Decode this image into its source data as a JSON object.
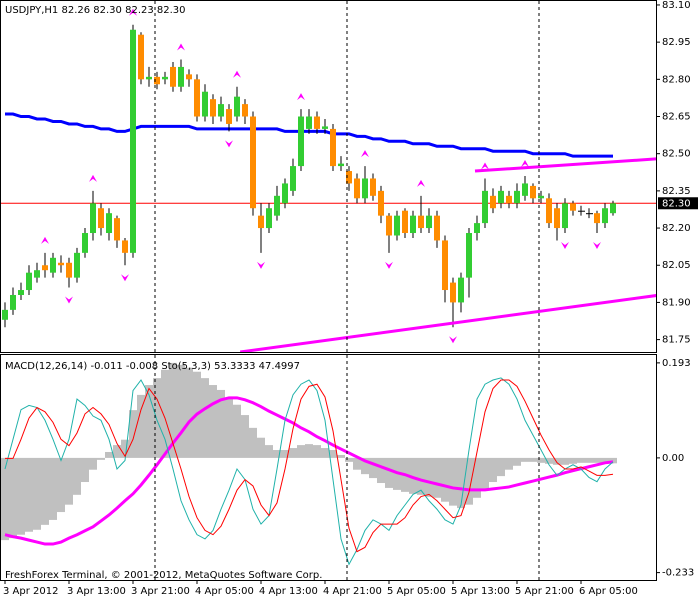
{
  "chart_data": [
    {
      "type": "candlestick",
      "title": "USDJPY,H1 82.26 82.30 82.23 82.30",
      "categories": [
        "3 Apr 2012",
        null,
        null,
        null,
        null,
        null,
        null,
        null,
        "3 Apr 13:00",
        null,
        null,
        null,
        null,
        null,
        null,
        null,
        "3 Apr 21:00",
        null,
        null,
        null,
        null,
        null,
        null,
        null,
        "4 Apr 05:00",
        null,
        null,
        null,
        null,
        null,
        null,
        null,
        "4 Apr 13:00",
        null,
        null,
        null,
        null,
        null,
        null,
        null,
        "4 Apr 21:00",
        null,
        null,
        null,
        null,
        null,
        null,
        null,
        "5 Apr 05:00",
        null,
        null,
        null,
        null,
        null,
        null,
        null,
        "5 Apr 13:00",
        null,
        null,
        null,
        null,
        null,
        null,
        null,
        "5 Apr 21:00",
        null,
        null,
        null,
        null,
        null,
        null,
        null,
        "6 Apr 05:00",
        null,
        null,
        null,
        null
      ],
      "open": [
        81.83,
        81.87,
        81.93,
        81.95,
        82.0,
        82.05,
        82.02,
        82.06,
        82.06,
        82.0,
        82.1,
        82.18,
        82.28,
        82.18,
        82.24,
        82.15,
        82.1,
        82.98,
        82.8,
        82.81,
        82.8,
        82.85,
        82.77,
        82.82,
        82.8,
        82.65,
        82.72,
        82.65,
        82.68,
        82.65,
        82.7,
        82.65,
        82.25,
        82.2,
        82.25,
        82.3,
        82.35,
        82.45,
        82.6,
        82.65,
        82.6,
        82.6,
        82.45,
        82.43,
        82.4,
        82.32,
        82.4,
        82.35,
        82.25,
        82.17,
        82.27,
        82.18,
        82.25,
        82.2,
        82.25,
        82.15,
        81.98,
        81.9,
        82.0,
        82.18,
        82.22,
        82.33,
        82.3,
        82.33,
        82.3,
        82.33,
        82.37,
        82.32,
        82.32,
        82.28,
        82.2,
        82.3,
        82.27,
        82.26,
        82.26,
        82.22,
        82.26
      ],
      "high": [
        81.9,
        81.96,
        81.98,
        82.05,
        82.06,
        82.1,
        82.1,
        82.09,
        82.08,
        82.12,
        82.2,
        82.35,
        82.3,
        82.28,
        82.25,
        82.16,
        83.02,
        82.99,
        82.85,
        82.83,
        82.83,
        82.87,
        82.88,
        82.84,
        82.82,
        82.78,
        82.74,
        82.73,
        82.7,
        82.77,
        82.72,
        82.67,
        82.3,
        82.3,
        82.37,
        82.4,
        82.48,
        82.68,
        82.68,
        82.67,
        82.64,
        82.62,
        82.49,
        82.45,
        82.42,
        82.45,
        82.42,
        82.37,
        82.26,
        82.27,
        82.28,
        82.27,
        82.33,
        82.28,
        82.27,
        82.17,
        82.0,
        82.02,
        82.2,
        82.25,
        82.4,
        82.36,
        82.37,
        82.35,
        82.38,
        82.41,
        82.38,
        82.35,
        82.34,
        82.3,
        82.32,
        82.31,
        82.29,
        82.28,
        82.27,
        82.3,
        82.31
      ],
      "low": [
        81.8,
        81.85,
        81.91,
        81.93,
        81.98,
        82.0,
        82.0,
        82.02,
        81.96,
        81.98,
        82.08,
        82.15,
        82.17,
        82.15,
        82.12,
        82.05,
        82.08,
        82.78,
        82.77,
        82.76,
        82.78,
        82.75,
        82.75,
        82.77,
        82.63,
        82.63,
        82.62,
        82.63,
        82.59,
        82.63,
        82.62,
        82.25,
        82.1,
        82.18,
        82.23,
        82.28,
        82.33,
        82.43,
        82.58,
        82.58,
        82.58,
        82.43,
        82.43,
        82.35,
        82.3,
        82.3,
        82.31,
        82.22,
        82.1,
        82.15,
        82.16,
        82.16,
        82.18,
        82.18,
        82.12,
        81.9,
        81.8,
        81.86,
        81.92,
        82.15,
        82.2,
        82.26,
        82.28,
        82.28,
        82.28,
        82.31,
        82.3,
        82.3,
        82.2,
        82.15,
        82.18,
        82.25,
        82.25,
        82.24,
        82.18,
        82.2,
        82.25
      ],
      "close": [
        81.87,
        81.93,
        81.95,
        82.02,
        82.03,
        82.03,
        82.08,
        82.05,
        82.0,
        82.1,
        82.18,
        82.3,
        82.2,
        82.26,
        82.15,
        82.1,
        83.0,
        82.8,
        82.81,
        82.78,
        82.81,
        82.77,
        82.85,
        82.8,
        82.65,
        82.75,
        82.65,
        82.7,
        82.62,
        82.73,
        82.65,
        82.28,
        82.2,
        82.28,
        82.33,
        82.38,
        82.45,
        82.65,
        82.65,
        82.6,
        82.61,
        82.45,
        82.46,
        82.38,
        82.32,
        82.4,
        82.33,
        82.25,
        82.17,
        82.25,
        82.18,
        82.25,
        82.2,
        82.25,
        82.15,
        81.95,
        81.9,
        82.0,
        82.18,
        82.22,
        82.35,
        82.28,
        82.35,
        82.3,
        82.35,
        82.38,
        82.32,
        82.33,
        82.22,
        82.2,
        82.3,
        82.27,
        82.27,
        82.26,
        82.22,
        82.28,
        82.3
      ],
      "up_color": "#32cd32",
      "down_color": "#ff8c00",
      "doji_color": "#000000",
      "series": [
        {
          "color": "#0000ff",
          "values": [
            82.66,
            82.66,
            82.65,
            82.65,
            82.64,
            82.64,
            82.63,
            82.63,
            82.62,
            82.62,
            82.61,
            82.61,
            82.6,
            82.6,
            82.59,
            82.59,
            82.6,
            82.61,
            82.61,
            82.61,
            82.61,
            82.61,
            82.61,
            82.61,
            82.6,
            82.6,
            82.6,
            82.6,
            82.6,
            82.6,
            82.6,
            82.6,
            82.6,
            82.6,
            82.6,
            82.59,
            82.59,
            82.59,
            82.59,
            82.59,
            82.59,
            82.58,
            82.58,
            82.58,
            82.57,
            82.57,
            82.56,
            82.56,
            82.55,
            82.55,
            82.55,
            82.54,
            82.54,
            82.54,
            82.53,
            82.53,
            82.53,
            82.52,
            82.52,
            82.52,
            82.52,
            82.51,
            82.51,
            82.51,
            82.51,
            82.51,
            82.5,
            82.5,
            82.5,
            82.5,
            82.5,
            82.49,
            82.49,
            82.49,
            82.49,
            82.49,
            82.49
          ]
        }
      ],
      "fractal_color": "#ff00ff",
      "fractals_up": [
        5,
        11,
        16,
        22,
        29,
        37,
        45,
        52,
        60,
        65
      ],
      "fractals_down": [
        8,
        15,
        28,
        32,
        48,
        56,
        70,
        74
      ],
      "trendlines": [
        {
          "color": "#ff00ff",
          "x": [
            58.75,
            81.9
          ],
          "y": [
            82.43,
            82.48
          ]
        },
        {
          "color": "#ff00ff",
          "x": [
            29.4,
            81.9
          ],
          "y": [
            81.7,
            81.93
          ]
        }
      ],
      "current_price": {
        "value": 82.3,
        "label": "82.30"
      },
      "ylim": [
        81.7,
        83.12
      ],
      "yticks": [
        {
          "value": 83.1,
          "label": "83.10"
        },
        82.95,
        {
          "value": 82.8,
          "label": "82.80"
        },
        82.65,
        {
          "value": 82.5,
          "label": "82.50"
        },
        82.35,
        {
          "value": 82.2,
          "label": "82.20"
        },
        82.05,
        {
          "value": 81.9,
          "label": "81.90"
        },
        81.75
      ]
    },
    {
      "type": "indicator",
      "title": "MACD(12,26,14) -0.011 -0.008 Sto(5,3,3) 53.3333 47.4997",
      "annotation": "FreshForex Terminal, © 2001-2012, MetaQuotes Software Corp.",
      "histogram": {
        "color": "#c0c0c0",
        "values": [
          -0.167,
          -0.163,
          -0.156,
          -0.15,
          -0.146,
          -0.136,
          -0.126,
          -0.11,
          -0.095,
          -0.075,
          -0.049,
          -0.024,
          -0.004,
          0.012,
          0.026,
          0.037,
          0.097,
          0.128,
          0.148,
          0.162,
          0.179,
          0.193,
          0.189,
          0.183,
          0.175,
          0.162,
          0.148,
          0.138,
          0.122,
          0.108,
          0.087,
          0.061,
          0.041,
          0.026,
          0.016,
          0.016,
          0.02,
          0.026,
          0.028,
          0.026,
          0.02,
          0.016,
          0.006,
          -0.008,
          -0.024,
          -0.033,
          -0.041,
          -0.051,
          -0.061,
          -0.065,
          -0.069,
          -0.073,
          -0.075,
          -0.079,
          -0.081,
          -0.089,
          -0.097,
          -0.102,
          -0.095,
          -0.081,
          -0.065,
          -0.049,
          -0.037,
          -0.024,
          -0.016,
          -0.008,
          -0.008,
          -0.01,
          -0.012,
          -0.014,
          -0.014,
          -0.012,
          -0.01,
          -0.01,
          -0.01,
          -0.01,
          -0.011
        ]
      },
      "series": [
        {
          "color": "#ff00ff",
          "width": 3,
          "values": [
            -0.156,
            -0.16,
            -0.163,
            -0.167,
            -0.171,
            -0.175,
            -0.175,
            -0.171,
            -0.163,
            -0.156,
            -0.148,
            -0.14,
            -0.128,
            -0.116,
            -0.102,
            -0.087,
            -0.073,
            -0.055,
            -0.035,
            -0.014,
            0.008,
            0.03,
            0.051,
            0.073,
            0.089,
            0.1,
            0.11,
            0.118,
            0.122,
            0.122,
            0.118,
            0.112,
            0.104,
            0.095,
            0.087,
            0.079,
            0.071,
            0.061,
            0.053,
            0.043,
            0.035,
            0.026,
            0.018,
            0.01,
            0.002,
            -0.006,
            -0.012,
            -0.018,
            -0.024,
            -0.03,
            -0.034,
            -0.04,
            -0.045,
            -0.049,
            -0.053,
            -0.057,
            -0.061,
            -0.063,
            -0.065,
            -0.065,
            -0.065,
            -0.063,
            -0.061,
            -0.059,
            -0.055,
            -0.051,
            -0.047,
            -0.043,
            -0.039,
            -0.035,
            -0.03,
            -0.026,
            -0.022,
            -0.018,
            -0.014,
            -0.01,
            -0.008
          ]
        },
        {
          "color": "#20b2aa",
          "width": 1,
          "axis": "y2",
          "values": [
            50,
            64,
            78,
            80,
            79,
            73,
            64,
            54,
            64,
            83,
            80,
            75,
            73,
            64,
            50,
            54,
            87,
            92,
            85,
            73,
            64,
            50,
            35,
            26,
            19,
            17,
            21,
            31,
            40,
            50,
            45,
            31,
            24,
            28,
            50,
            73,
            85,
            90,
            92,
            87,
            73,
            45,
            17,
            5,
            12,
            21,
            26,
            24,
            21,
            28,
            33,
            38,
            40,
            35,
            31,
            26,
            24,
            33,
            59,
            83,
            90,
            92,
            93,
            90,
            83,
            73,
            66,
            59,
            52,
            47,
            50,
            52,
            50,
            46,
            44,
            50,
            53.3333
          ]
        },
        {
          "color": "#ff0000",
          "width": 1,
          "axis": "y2",
          "values": [
            55,
            55,
            64,
            74,
            79,
            77,
            72,
            64,
            61,
            67,
            76,
            79,
            76,
            71,
            62,
            56,
            64,
            78,
            88,
            83,
            74,
            62,
            50,
            37,
            27,
            21,
            19,
            23,
            31,
            40,
            45,
            42,
            33,
            28,
            34,
            50,
            69,
            83,
            89,
            90,
            84,
            68,
            45,
            22,
            11,
            13,
            20,
            24,
            24,
            24,
            27,
            33,
            37,
            38,
            35,
            31,
            27,
            28,
            39,
            58,
            77,
            88,
            92,
            92,
            89,
            82,
            74,
            66,
            59,
            53,
            50,
            50,
            51,
            49,
            47,
            47,
            47.4997
          ]
        }
      ],
      "ylim": [
        -0.248,
        0.209
      ],
      "yticks": [
        0.193,
        {
          "value": 0,
          "label": "0.00"
        },
        -0.233
      ],
      "y2lim": [
        -2.4,
        103.8
      ]
    }
  ]
}
